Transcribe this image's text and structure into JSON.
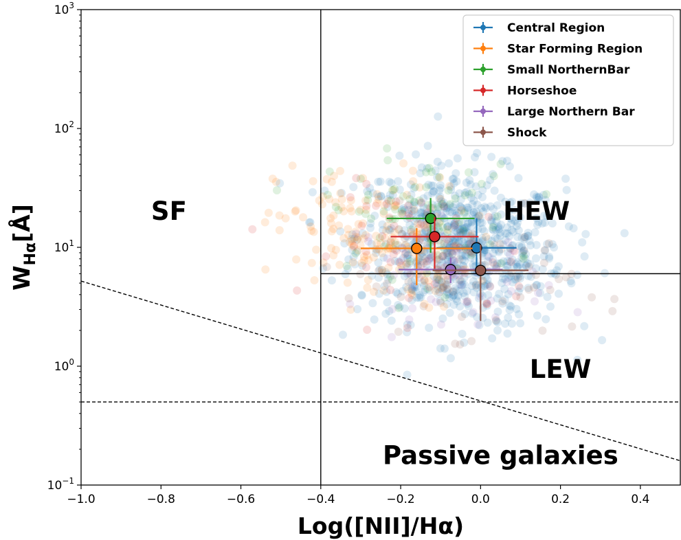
{
  "chart_data": {
    "type": "scatter",
    "title": "",
    "xlabel": "Log([NII]/Hα)",
    "ylabel_main": "W",
    "ylabel_sub": "Hα",
    "ylabel_unit": "[Å]",
    "xlim": [
      -1.0,
      0.5
    ],
    "ylim": [
      0.1,
      1000
    ],
    "yscale": "log",
    "x_ticks": [
      -1.0,
      -0.8,
      -0.6,
      -0.4,
      -0.2,
      0.0,
      0.2,
      0.4
    ],
    "x_tick_labels": [
      "−1.0",
      "−0.8",
      "−0.6",
      "−0.4",
      "−0.2",
      "0.0",
      "0.2",
      "0.4"
    ],
    "y_ticks": [
      {
        "value": 0.1,
        "base": "10",
        "exp": "−1"
      },
      {
        "value": 1,
        "base": "10",
        "exp": "0"
      },
      {
        "value": 10,
        "base": "10",
        "exp": "1"
      },
      {
        "value": 100,
        "base": "10",
        "exp": "2"
      },
      {
        "value": 1000,
        "base": "10",
        "exp": "3"
      }
    ],
    "region_labels": [
      {
        "text": "SF",
        "x": -0.78,
        "y": 17
      },
      {
        "text": "HEW",
        "x": 0.14,
        "y": 17
      },
      {
        "text": "LEW",
        "x": 0.2,
        "y": 0.8
      },
      {
        "text": "Passive galaxies",
        "x": 0.05,
        "y": 0.15
      }
    ],
    "lines": [
      {
        "name": "vertical-divider",
        "style": "solid",
        "points": [
          [
            -0.4,
            0.1
          ],
          [
            -0.4,
            1000
          ]
        ]
      },
      {
        "name": "horizontal-divider",
        "style": "solid",
        "points": [
          [
            -0.4,
            6
          ],
          [
            0.5,
            6
          ]
        ]
      },
      {
        "name": "diagonal-dashed",
        "style": "dashed",
        "points": [
          [
            -1.0,
            5.2
          ],
          [
            0.5,
            0.16
          ]
        ]
      },
      {
        "name": "passive-dashed",
        "style": "dashed",
        "points": [
          [
            -1.0,
            0.5
          ],
          [
            0.5,
            0.5
          ]
        ]
      }
    ],
    "series": [
      {
        "name": "Central Region",
        "color": "#1f77b4",
        "x": -0.01,
        "y": 9.9,
        "xerr": 0.1,
        "yerr_low": 6.7,
        "yerr_high": 17.5,
        "cloud": {
          "cx": -0.05,
          "cy": 10,
          "sx": 0.13,
          "sy": 0.33,
          "n": 750
        }
      },
      {
        "name": "Star Forming Region",
        "color": "#ff7f0e",
        "x": -0.16,
        "y": 9.8,
        "xerr": 0.14,
        "yerr_low": 4.8,
        "yerr_high": 14.5,
        "cloud": {
          "cx": -0.27,
          "cy": 12,
          "sx": 0.12,
          "sy": 0.28,
          "n": 170
        }
      },
      {
        "name": "Small NorthernBar",
        "color": "#2ca02c",
        "x": -0.125,
        "y": 17.5,
        "xerr": 0.11,
        "yerr_low": 9,
        "yerr_high": 26,
        "cloud": {
          "cx": -0.15,
          "cy": 18,
          "sx": 0.12,
          "sy": 0.25,
          "n": 90
        }
      },
      {
        "name": "Horseshoe",
        "color": "#d62728",
        "x": -0.115,
        "y": 12.3,
        "xerr": 0.11,
        "yerr_low": 6.5,
        "yerr_high": 18,
        "cloud": {
          "cx": -0.12,
          "cy": 9,
          "sx": 0.12,
          "sy": 0.25,
          "n": 70
        }
      },
      {
        "name": "Large Northern Bar",
        "color": "#9467bd",
        "x": -0.075,
        "y": 6.5,
        "xerr": 0.13,
        "yerr_low": 5,
        "yerr_high": 8.2,
        "cloud": {
          "cx": -0.07,
          "cy": 6,
          "sx": 0.12,
          "sy": 0.2,
          "n": 60
        }
      },
      {
        "name": "Shock",
        "color": "#8c564b",
        "x": 0.0,
        "y": 6.4,
        "xerr": 0.12,
        "yerr_low": 2.4,
        "yerr_high": 10.5,
        "cloud": {
          "cx": -0.05,
          "cy": 6,
          "sx": 0.14,
          "sy": 0.25,
          "n": 90
        }
      }
    ],
    "legend_position": "top-right"
  }
}
